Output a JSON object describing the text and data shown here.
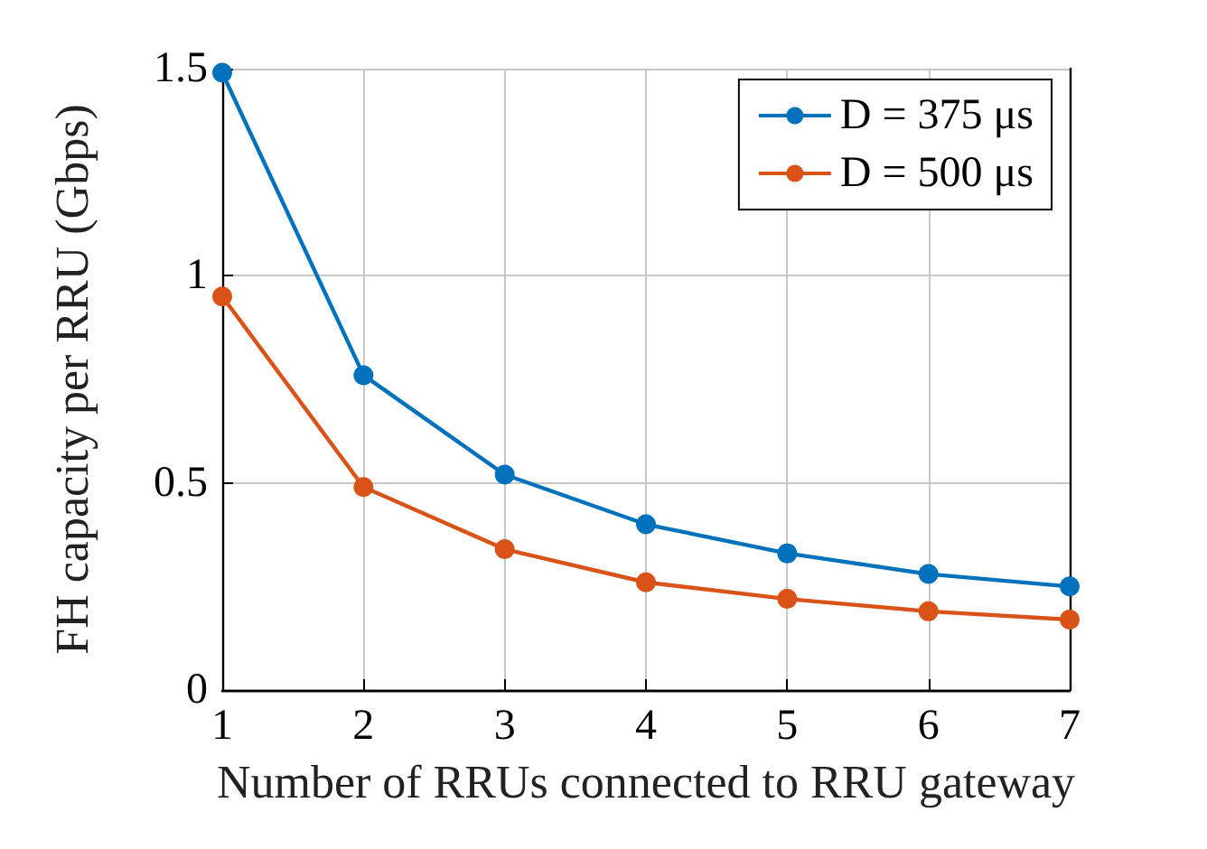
{
  "chart_data": {
    "type": "line",
    "xlabel": "Number of RRUs connected to RRU gateway",
    "ylabel": "FH capacity per RRU (Gbps)",
    "x": [
      1,
      2,
      3,
      4,
      5,
      6,
      7
    ],
    "series": [
      {
        "name": "D = 375 μs",
        "color": "#0072bd",
        "values": [
          1.49,
          0.76,
          0.52,
          0.4,
          0.33,
          0.28,
          0.25
        ]
      },
      {
        "name": "D = 500 μs",
        "color": "#d95319",
        "values": [
          0.95,
          0.49,
          0.34,
          0.26,
          0.22,
          0.19,
          0.17
        ]
      }
    ],
    "xlim": [
      1,
      7
    ],
    "xticks": [
      1,
      2,
      3,
      4,
      5,
      6,
      7
    ],
    "ylim": [
      0,
      1.5
    ],
    "yticks": [
      0,
      0.5,
      1,
      1.5
    ],
    "grid": true,
    "legend": "top right",
    "marker": "circle",
    "line_style": "solid"
  }
}
